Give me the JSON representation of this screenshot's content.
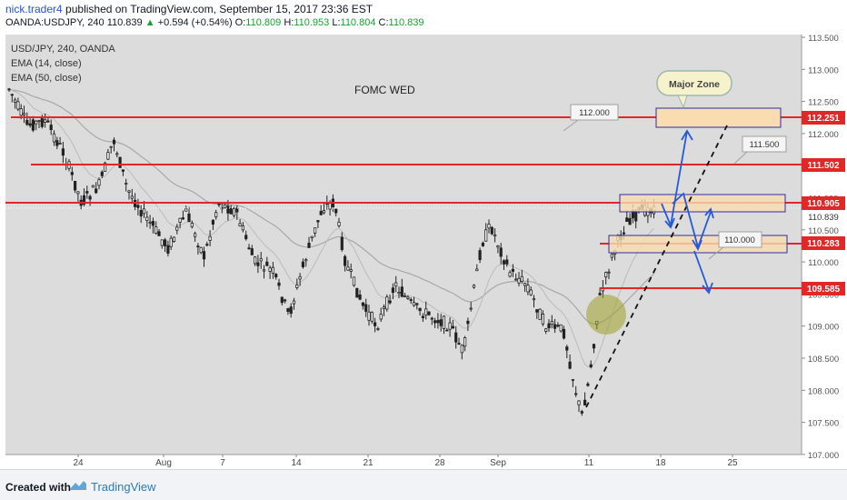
{
  "header": {
    "author": "nick.trader4",
    "published_text": "published on TradingView.com, September 15, 2017 23:36 EST",
    "symbol": "OANDA:USDJPY, 240",
    "last_price": "110.839",
    "change_arrow": "▲",
    "change": "+0.594 (+0.54%)",
    "o_label": "O:",
    "o_value": "110.809",
    "h_label": "H:",
    "h_value": "110.953",
    "l_label": "L:",
    "l_value": "110.804",
    "c_label": "C:",
    "c_value": "110.839"
  },
  "chart": {
    "legend_symbol": "USD/JPY, 240, OANDA",
    "legend_ema14": "EMA (14, close)",
    "legend_ema50": "EMA (50, close)",
    "fomc_label": "FOMC WED",
    "major_zone_label": "Major Zone",
    "callouts": [
      "112.000",
      "111.500",
      "110.000"
    ],
    "y_ticks": [
      "113.500",
      "113.000",
      "112.500",
      "112.000",
      "111.500",
      "111.000",
      "110.500",
      "110.000",
      "109.500",
      "109.000",
      "108.500",
      "108.000",
      "107.500",
      "107.000"
    ],
    "current_price_label": "110.839",
    "level_labels": [
      "112.251",
      "111.502",
      "110.905",
      "110.283",
      "109.585"
    ],
    "x_ticks": [
      "24",
      "Aug",
      "7",
      "14",
      "21",
      "28",
      "Sep",
      "11",
      "18",
      "25"
    ],
    "colors": {
      "level": "#e02828",
      "zone": "#f9dcb0",
      "zone_border": "#2c2ca8",
      "arrow": "#2659d8",
      "candle": "#222222",
      "circle": "#9ea028"
    }
  },
  "footer": {
    "created_with": "Created with",
    "brand": "TradingView"
  }
}
